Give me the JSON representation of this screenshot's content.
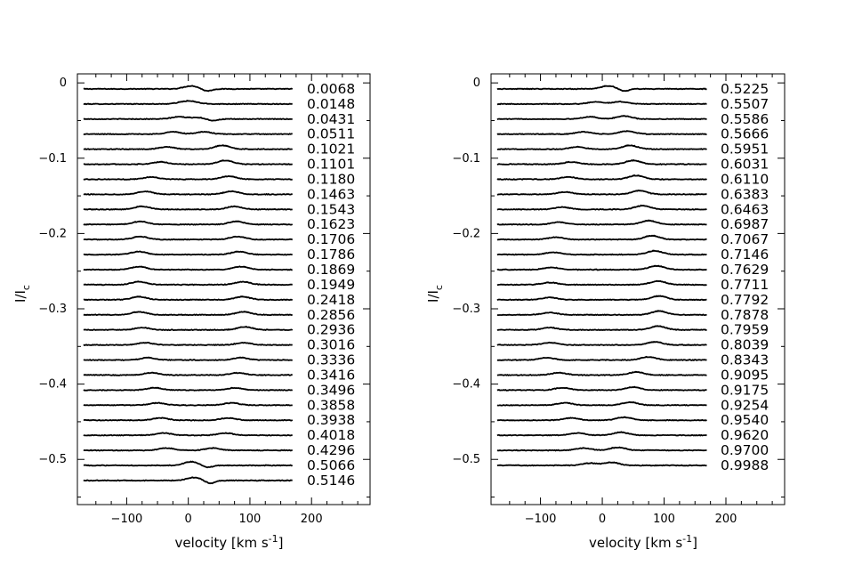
{
  "chart_data": [
    {
      "type": "line",
      "ylabel": "I/I",
      "ylabel_sub": "c",
      "xlabel_prefix": "velocity [km s",
      "xlabel_sup": "-1",
      "xlabel_suffix": "]",
      "xlim": [
        -180,
        295
      ],
      "ylim": [
        -0.56,
        0.012
      ],
      "xticks": [
        -100,
        0,
        100,
        200
      ],
      "xtick_labels": [
        "−100",
        "0",
        "100",
        "200"
      ],
      "yticks": [
        0,
        -0.1,
        -0.2,
        -0.3,
        -0.4,
        -0.5
      ],
      "ytick_labels": [
        "0",
        "−0.1",
        "−0.2",
        "−0.3",
        "−0.4",
        "−0.5"
      ],
      "profile_velocity_range": [
        -170,
        170
      ],
      "offset_start": -0.008,
      "offset_step": -0.02,
      "phases": [
        "0.0068",
        "0.0148",
        "0.0431",
        "0.0511",
        "0.1021",
        "0.1101",
        "0.1180",
        "0.1463",
        "0.1543",
        "0.1623",
        "0.1706",
        "0.1786",
        "0.1869",
        "0.1949",
        "0.2418",
        "0.2856",
        "0.2936",
        "0.3016",
        "0.3336",
        "0.3416",
        "0.3496",
        "0.3858",
        "0.3938",
        "0.4018",
        "0.4296",
        "0.5066",
        "0.5146"
      ],
      "features": [
        [
          [
            5,
            0.004,
            12
          ],
          [
            30,
            -0.003,
            8
          ]
        ],
        [
          [
            0,
            0.004,
            14
          ]
        ],
        [
          [
            -15,
            0.003,
            12
          ],
          [
            15,
            0.002,
            10
          ],
          [
            40,
            -0.002,
            8
          ]
        ],
        [
          [
            -25,
            0.003,
            12
          ],
          [
            25,
            0.003,
            12
          ]
        ],
        [
          [
            -35,
            0.003,
            12
          ],
          [
            55,
            0.005,
            12
          ]
        ],
        [
          [
            -45,
            0.003,
            12
          ],
          [
            60,
            0.005,
            12
          ]
        ],
        [
          [
            -60,
            0.003,
            12
          ],
          [
            65,
            0.004,
            12
          ]
        ],
        [
          [
            -70,
            0.004,
            12
          ],
          [
            70,
            0.004,
            12
          ]
        ],
        [
          [
            -75,
            0.004,
            12
          ],
          [
            75,
            0.004,
            12
          ]
        ],
        [
          [
            -78,
            0.004,
            12
          ],
          [
            78,
            0.004,
            12
          ]
        ],
        [
          [
            -78,
            0.004,
            12
          ],
          [
            80,
            0.004,
            12
          ]
        ],
        [
          [
            -80,
            0.004,
            12
          ],
          [
            82,
            0.004,
            12
          ]
        ],
        [
          [
            -80,
            0.004,
            12
          ],
          [
            85,
            0.004,
            12
          ]
        ],
        [
          [
            -80,
            0.004,
            12
          ],
          [
            88,
            0.004,
            12
          ]
        ],
        [
          [
            -80,
            0.004,
            12
          ],
          [
            88,
            0.004,
            12
          ]
        ],
        [
          [
            -80,
            0.004,
            12
          ],
          [
            90,
            0.004,
            12
          ]
        ],
        [
          [
            -75,
            0.003,
            12
          ],
          [
            92,
            0.004,
            12
          ]
        ],
        [
          [
            -70,
            0.003,
            12
          ],
          [
            90,
            0.003,
            12
          ]
        ],
        [
          [
            -65,
            0.003,
            12
          ],
          [
            85,
            0.003,
            12
          ]
        ],
        [
          [
            -60,
            0.003,
            12
          ],
          [
            80,
            0.003,
            12
          ]
        ],
        [
          [
            -55,
            0.003,
            12
          ],
          [
            75,
            0.003,
            12
          ]
        ],
        [
          [
            -50,
            0.003,
            12
          ],
          [
            70,
            0.003,
            12
          ]
        ],
        [
          [
            -45,
            0.003,
            12
          ],
          [
            65,
            0.003,
            12
          ]
        ],
        [
          [
            -40,
            0.003,
            12
          ],
          [
            60,
            0.003,
            12
          ]
        ],
        [
          [
            -35,
            0.003,
            12
          ],
          [
            40,
            0.003,
            12
          ]
        ],
        [
          [
            5,
            0.005,
            12
          ],
          [
            30,
            -0.003,
            8
          ]
        ],
        [
          [
            10,
            0.004,
            12
          ],
          [
            35,
            -0.004,
            8
          ]
        ]
      ]
    },
    {
      "type": "line",
      "ylabel": "I/I",
      "ylabel_sub": "c",
      "xlabel_prefix": "velocity [km s",
      "xlabel_sup": "-1",
      "xlabel_suffix": "]",
      "xlim": [
        -180,
        295
      ],
      "ylim": [
        -0.56,
        0.012
      ],
      "xticks": [
        -100,
        0,
        100,
        200
      ],
      "xtick_labels": [
        "−100",
        "0",
        "100",
        "200"
      ],
      "yticks": [
        0,
        -0.1,
        -0.2,
        -0.3,
        -0.4,
        -0.5
      ],
      "ytick_labels": [
        "0",
        "−0.1",
        "−0.2",
        "−0.3",
        "−0.4",
        "−0.5"
      ],
      "profile_velocity_range": [
        -170,
        170
      ],
      "offset_start": -0.008,
      "offset_step": -0.02,
      "phases": [
        "0.5225",
        "0.5507",
        "0.5586",
        "0.5666",
        "0.5951",
        "0.6031",
        "0.6110",
        "0.6383",
        "0.6463",
        "0.6987",
        "0.7067",
        "0.7146",
        "0.7629",
        "0.7711",
        "0.7792",
        "0.7878",
        "0.7959",
        "0.8039",
        "0.8343",
        "0.9095",
        "0.9175",
        "0.9254",
        "0.9540",
        "0.9620",
        "0.9700",
        "0.9988"
      ],
      "features": [
        [
          [
            10,
            0.004,
            12
          ],
          [
            35,
            -0.003,
            8
          ]
        ],
        [
          [
            -10,
            0.003,
            12
          ],
          [
            30,
            0.003,
            12
          ]
        ],
        [
          [
            -20,
            0.003,
            12
          ],
          [
            35,
            0.004,
            12
          ]
        ],
        [
          [
            -30,
            0.003,
            12
          ],
          [
            40,
            0.004,
            12
          ]
        ],
        [
          [
            -40,
            0.003,
            12
          ],
          [
            45,
            0.005,
            12
          ]
        ],
        [
          [
            -50,
            0.003,
            12
          ],
          [
            50,
            0.005,
            12
          ]
        ],
        [
          [
            -55,
            0.003,
            12
          ],
          [
            55,
            0.005,
            12
          ]
        ],
        [
          [
            -60,
            0.003,
            12
          ],
          [
            60,
            0.005,
            12
          ]
        ],
        [
          [
            -65,
            0.003,
            12
          ],
          [
            65,
            0.005,
            12
          ]
        ],
        [
          [
            -70,
            0.003,
            12
          ],
          [
            75,
            0.005,
            12
          ]
        ],
        [
          [
            -75,
            0.003,
            12
          ],
          [
            80,
            0.005,
            12
          ]
        ],
        [
          [
            -80,
            0.003,
            12
          ],
          [
            85,
            0.005,
            12
          ]
        ],
        [
          [
            -82,
            0.003,
            12
          ],
          [
            88,
            0.005,
            12
          ]
        ],
        [
          [
            -85,
            0.003,
            12
          ],
          [
            90,
            0.005,
            12
          ]
        ],
        [
          [
            -85,
            0.003,
            12
          ],
          [
            92,
            0.005,
            12
          ]
        ],
        [
          [
            -85,
            0.003,
            12
          ],
          [
            92,
            0.005,
            12
          ]
        ],
        [
          [
            -85,
            0.003,
            12
          ],
          [
            90,
            0.005,
            12
          ]
        ],
        [
          [
            -85,
            0.003,
            12
          ],
          [
            85,
            0.004,
            12
          ]
        ],
        [
          [
            -90,
            0.003,
            12
          ],
          [
            75,
            0.004,
            12
          ]
        ],
        [
          [
            -70,
            0.003,
            12
          ],
          [
            55,
            0.004,
            12
          ]
        ],
        [
          [
            -65,
            0.003,
            12
          ],
          [
            50,
            0.004,
            12
          ]
        ],
        [
          [
            -60,
            0.003,
            12
          ],
          [
            45,
            0.004,
            12
          ]
        ],
        [
          [
            -50,
            0.003,
            12
          ],
          [
            35,
            0.004,
            12
          ]
        ],
        [
          [
            -40,
            0.003,
            12
          ],
          [
            30,
            0.004,
            12
          ]
        ],
        [
          [
            -30,
            0.003,
            12
          ],
          [
            25,
            0.004,
            12
          ]
        ],
        [
          [
            -20,
            0.003,
            12
          ],
          [
            15,
            0.004,
            12
          ]
        ]
      ]
    }
  ]
}
